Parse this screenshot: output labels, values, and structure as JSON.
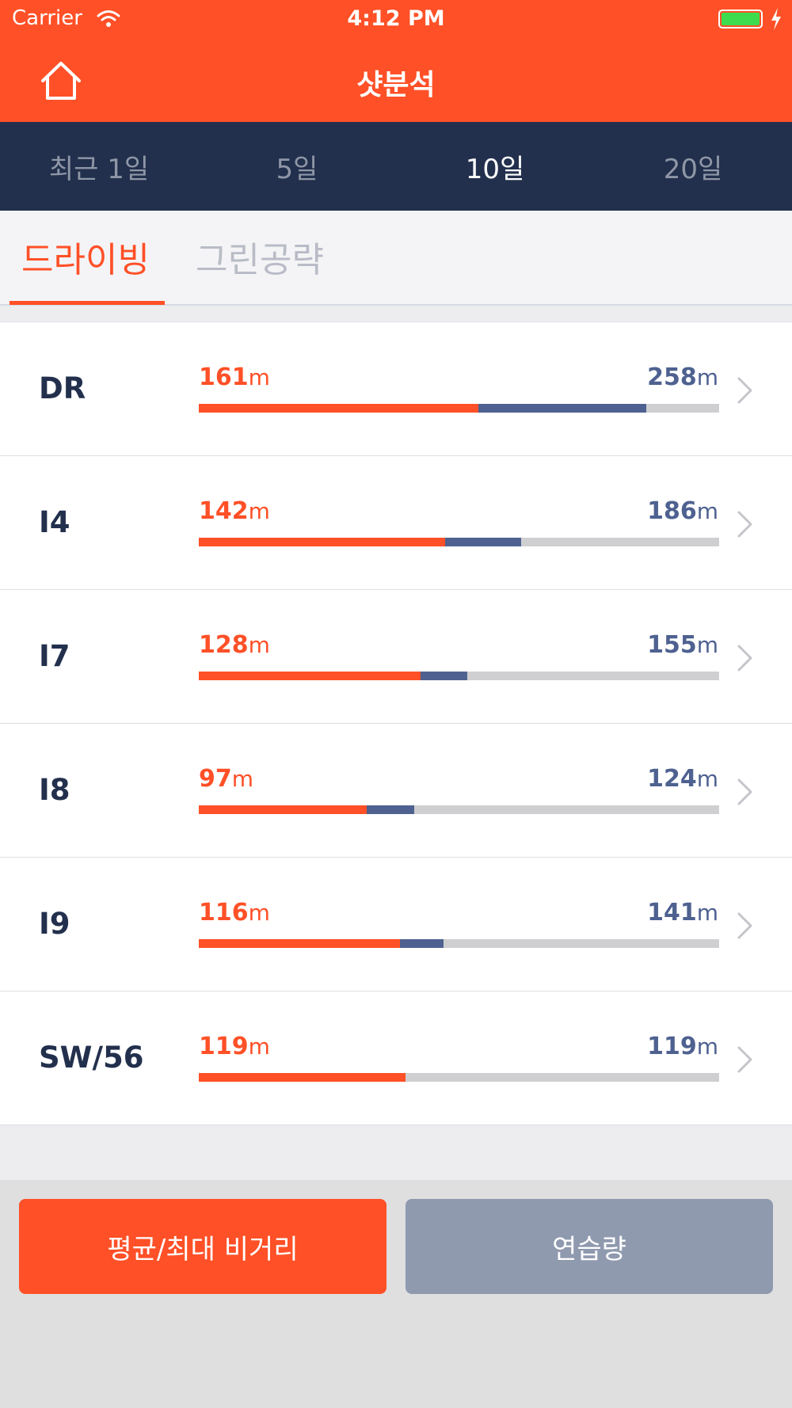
{
  "status_bar": {
    "carrier": "Carrier",
    "time": "4:12 PM",
    "battery_level": 1.0
  },
  "nav": {
    "title": "샷분석",
    "home_icon": "home-icon"
  },
  "period_tabs": [
    {
      "label": "최근 1일",
      "active": false
    },
    {
      "label": "5일",
      "active": false
    },
    {
      "label": "10일",
      "active": true
    },
    {
      "label": "20일",
      "active": false
    }
  ],
  "type_tabs": [
    {
      "label": "드라이빙",
      "active": true
    },
    {
      "label": "그린공략",
      "active": false
    }
  ],
  "scale_max": 300,
  "clubs": [
    {
      "club": "DR",
      "avg": "161",
      "max": "258",
      "unit": "m"
    },
    {
      "club": "I4",
      "avg": "142",
      "max": "186",
      "unit": "m"
    },
    {
      "club": "I7",
      "avg": "128",
      "max": "155",
      "unit": "m"
    },
    {
      "club": "I8",
      "avg": "97",
      "max": "124",
      "unit": "m"
    },
    {
      "club": "I9",
      "avg": "116",
      "max": "141",
      "unit": "m"
    },
    {
      "club": "SW/56",
      "avg": "119",
      "max": "119",
      "unit": "m"
    }
  ],
  "colors": {
    "accent": "#ff5027",
    "navy": "#22304d",
    "max_bar": "#4e6190"
  },
  "footer": {
    "primary_label": "평균/최대 비거리",
    "secondary_label": "연습량"
  }
}
